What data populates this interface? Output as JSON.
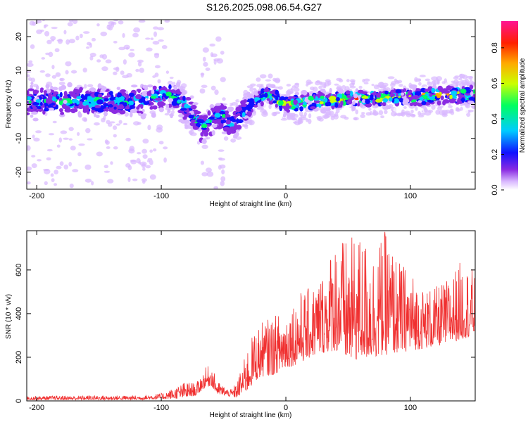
{
  "title": "S126.2025.098.06.54.G27",
  "chart_data": [
    {
      "type": "heatmap",
      "xlabel": "Height of straight line (km)",
      "ylabel": "Frequency (Hz)",
      "xlim": [
        -208,
        152
      ],
      "ylim": [
        -25,
        25
      ],
      "x_ticks": [
        -200,
        -100,
        0,
        100
      ],
      "y_ticks": [
        -20,
        -10,
        0,
        10,
        20
      ],
      "colorbar": {
        "label": "Normalized spectral amplitude",
        "range": [
          0,
          0.95
        ],
        "ticks": [
          0.0,
          0.2,
          0.4,
          0.6,
          0.8
        ],
        "colormap": [
          "#ffffff",
          "#d9b8ff",
          "#8a2be2",
          "#1010ff",
          "#00ccff",
          "#00ff60",
          "#ccff00",
          "#ffaa00",
          "#ff2000",
          "#ff1493"
        ]
      },
      "ridge": {
        "x": [
          -208,
          -180,
          -150,
          -130,
          -110,
          -95,
          -85,
          -75,
          -68,
          -60,
          -52,
          -45,
          -40,
          -35,
          -30,
          -25,
          -20,
          -15,
          -10,
          -5,
          0,
          10,
          20,
          40,
          60,
          80,
          100,
          120,
          152
        ],
        "frequency": [
          1.0,
          0.8,
          1.0,
          0.5,
          1.5,
          3.0,
          1.0,
          -3.0,
          -7.0,
          -5.0,
          -3.0,
          -6.0,
          -5.0,
          -3.0,
          -1.0,
          0.5,
          2.0,
          3.0,
          2.5,
          1.0,
          0.0,
          0.5,
          1.0,
          1.5,
          1.8,
          2.0,
          2.2,
          2.6,
          3.0
        ]
      }
    },
    {
      "type": "line",
      "xlabel": "Height of straight line (km)",
      "ylabel": "SNR (10 * v/v)",
      "xlim": [
        -208,
        152
      ],
      "ylim": [
        0,
        780
      ],
      "x_ticks": [
        -200,
        -100,
        0,
        100
      ],
      "y_ticks": [
        0,
        200,
        400,
        600
      ],
      "series_color": "#f03030",
      "envelope": {
        "x": [
          -208,
          -160,
          -120,
          -100,
          -90,
          -80,
          -72,
          -65,
          -60,
          -55,
          -50,
          -45,
          -40,
          -35,
          -30,
          -25,
          -20,
          -10,
          0,
          10,
          20,
          30,
          40,
          50,
          60,
          70,
          80,
          90,
          100,
          110,
          120,
          130,
          140,
          152
        ],
        "snr_max": [
          22,
          25,
          25,
          35,
          60,
          90,
          80,
          150,
          170,
          90,
          70,
          50,
          80,
          160,
          260,
          320,
          360,
          390,
          420,
          500,
          520,
          600,
          760,
          740,
          770,
          700,
          780,
          650,
          600,
          520,
          520,
          560,
          640,
          600
        ],
        "snr_min": [
          5,
          5,
          5,
          8,
          10,
          15,
          25,
          60,
          70,
          30,
          25,
          20,
          15,
          30,
          50,
          90,
          110,
          120,
          150,
          170,
          200,
          220,
          230,
          180,
          190,
          200,
          210,
          220,
          230,
          240,
          250,
          260,
          280,
          300
        ]
      }
    }
  ]
}
